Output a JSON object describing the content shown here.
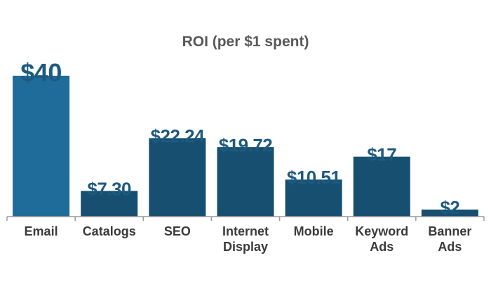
{
  "chart_data": {
    "type": "bar",
    "title": "ROI (per $1 spent)",
    "categories": [
      {
        "lines": [
          "Email"
        ]
      },
      {
        "lines": [
          "Catalogs"
        ]
      },
      {
        "lines": [
          "SEO"
        ]
      },
      {
        "lines": [
          "Internet",
          "Display"
        ]
      },
      {
        "lines": [
          "Mobile"
        ]
      },
      {
        "lines": [
          "Keyword",
          "Ads"
        ]
      },
      {
        "lines": [
          "Banner",
          "Ads"
        ]
      }
    ],
    "values": [
      40,
      7.3,
      22.24,
      19.72,
      10.51,
      17,
      2
    ],
    "value_labels": [
      "$40",
      "$7.30",
      "$22.24",
      "$19.72",
      "$10.51",
      "$17",
      "$2"
    ],
    "highlight_index": 0,
    "colors": {
      "highlight": "#1f6b99",
      "bar": "#174f70",
      "label": "#1d5a80",
      "axis": "#9a9a9a"
    },
    "ylim": [
      0,
      40
    ],
    "grid": false,
    "legend": "none"
  }
}
